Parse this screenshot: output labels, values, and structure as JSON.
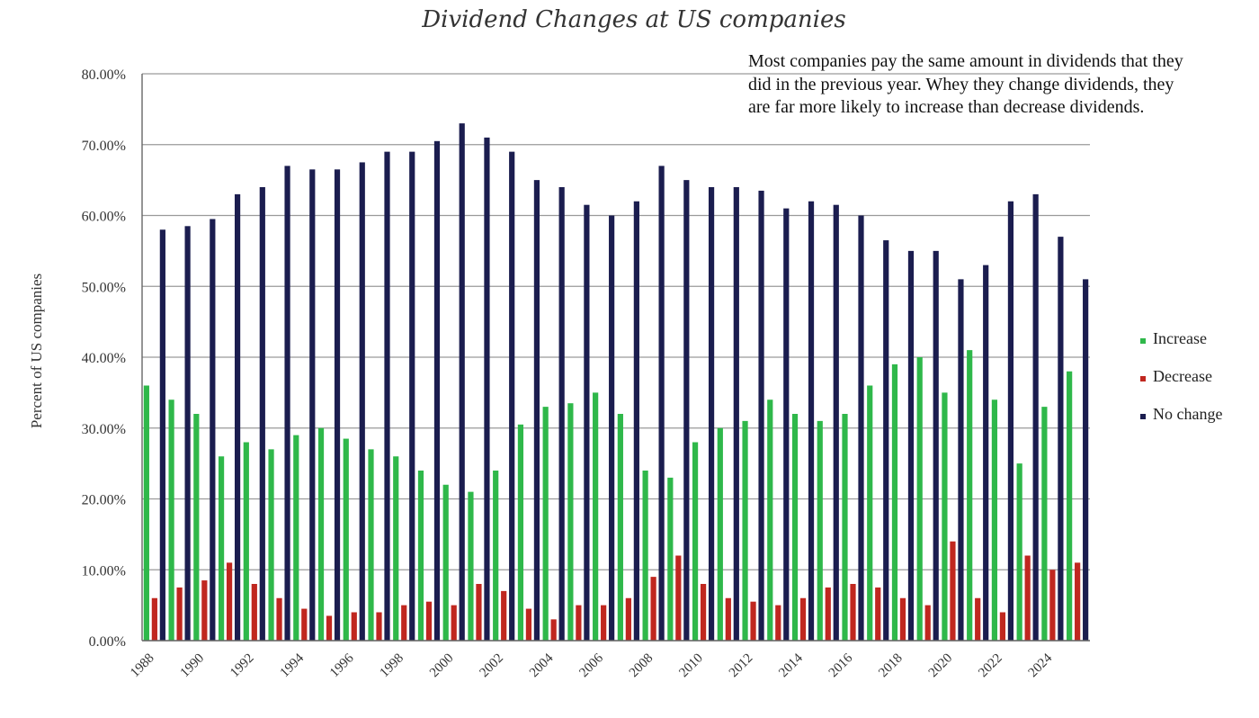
{
  "chart_data": {
    "type": "bar",
    "title": "Dividend Changes at US companies",
    "xlabel": "",
    "ylabel": "Percent of US companies",
    "ylim": [
      0,
      0.8
    ],
    "yticks": [
      "0.00%",
      "10.00%",
      "20.00%",
      "30.00%",
      "40.00%",
      "50.00%",
      "60.00%",
      "70.00%",
      "80.00%"
    ],
    "xtick_labels": [
      "1988",
      "1990",
      "1992",
      "1994",
      "1996",
      "1998",
      "2000",
      "2002",
      "2004",
      "2006",
      "2008",
      "2010",
      "2012",
      "2014",
      "2016",
      "2018",
      "2020",
      "2022",
      "2024"
    ],
    "categories": [
      "1988",
      "1989",
      "1990",
      "1991",
      "1992",
      "1993",
      "1994",
      "1995",
      "1996",
      "1997",
      "1998",
      "1999",
      "2000",
      "2001",
      "2002",
      "2003",
      "2004",
      "2005",
      "2006",
      "2007",
      "2008",
      "2009",
      "2010",
      "2011",
      "2012",
      "2013",
      "2014",
      "2015",
      "2016",
      "2017",
      "2018",
      "2019",
      "2020",
      "2021",
      "2022",
      "2023",
      "2024",
      "2025"
    ],
    "series": [
      {
        "name": "Increase",
        "color": "#2fb84a",
        "values": [
          0.36,
          0.34,
          0.32,
          0.26,
          0.28,
          0.27,
          0.29,
          0.3,
          0.285,
          0.27,
          0.26,
          0.24,
          0.22,
          0.21,
          0.24,
          0.305,
          0.33,
          0.335,
          0.35,
          0.32,
          0.24,
          0.23,
          0.28,
          0.3,
          0.31,
          0.34,
          0.32,
          0.31,
          0.32,
          0.36,
          0.39,
          0.4,
          0.35,
          0.41,
          0.34,
          0.25,
          0.33,
          0.38
        ]
      },
      {
        "name": "Decrease",
        "color": "#c0271f",
        "values": [
          0.06,
          0.075,
          0.085,
          0.11,
          0.08,
          0.06,
          0.045,
          0.035,
          0.04,
          0.04,
          0.05,
          0.055,
          0.05,
          0.08,
          0.07,
          0.045,
          0.03,
          0.05,
          0.05,
          0.06,
          0.09,
          0.12,
          0.08,
          0.06,
          0.055,
          0.05,
          0.06,
          0.075,
          0.08,
          0.075,
          0.06,
          0.05,
          0.14,
          0.06,
          0.04,
          0.12,
          0.1,
          0.11
        ]
      },
      {
        "name": "No change",
        "color": "#1b1d4f",
        "values": [
          0.58,
          0.585,
          0.595,
          0.63,
          0.64,
          0.67,
          0.665,
          0.665,
          0.675,
          0.69,
          0.69,
          0.705,
          0.73,
          0.71,
          0.69,
          0.65,
          0.64,
          0.615,
          0.6,
          0.62,
          0.67,
          0.65,
          0.64,
          0.64,
          0.635,
          0.61,
          0.62,
          0.615,
          0.6,
          0.565,
          0.55,
          0.55,
          0.51,
          0.53,
          0.62,
          0.63,
          0.57,
          0.51
        ]
      }
    ],
    "grid": true,
    "legend_position": "right",
    "annotation": "Most companies pay the same amount in dividends that they did in the previous year. Whey they change dividends, they are far more likely to increase than decrease dividends."
  }
}
